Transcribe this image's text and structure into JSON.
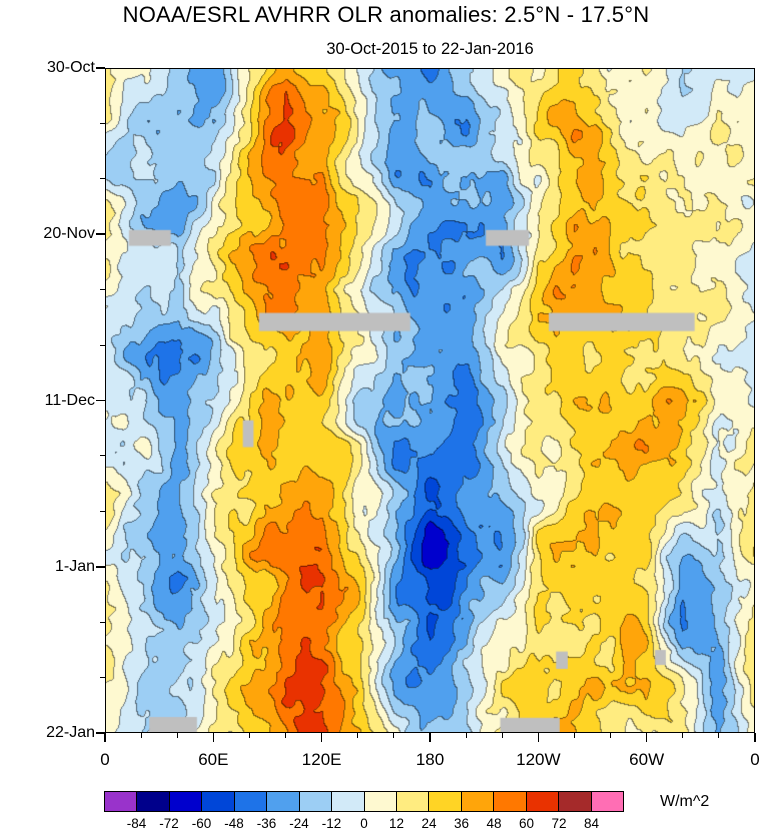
{
  "title": "NOAA/ESRL AVHRR OLR anomalies: 2.5°N - 17.5°N",
  "subtitle": "30-Oct-2015 to 22-Jan-2016",
  "chart_data": {
    "type": "heatmap",
    "description": "Time-longitude (Hovmoller) plot of OLR anomalies, filled contours every 12 W/m^2",
    "x_axis": {
      "tick_labels": [
        "0",
        "60E",
        "120E",
        "180",
        "120W",
        "60W",
        "0"
      ],
      "tick_degrees": [
        0,
        60,
        120,
        180,
        240,
        300,
        360
      ],
      "range_degrees": [
        0,
        360
      ],
      "minor_step_degrees": 20
    },
    "y_axis": {
      "tick_labels": [
        "30-Oct",
        "20-Nov",
        "11-Dec",
        "1-Jan",
        "22-Jan"
      ],
      "tick_days": [
        0,
        21,
        42,
        63,
        84
      ],
      "range_days": [
        0,
        84
      ],
      "minor_step_days": 7
    },
    "colorbar": {
      "label": "W/m^2",
      "boundaries": [
        -84,
        -72,
        -60,
        -48,
        -36,
        -24,
        -12,
        0,
        12,
        24,
        36,
        48,
        60,
        72,
        84
      ],
      "colors": [
        "#9933CB",
        "#00008B",
        "#0000CD",
        "#0046D8",
        "#1E73E8",
        "#50A0EE",
        "#9CCEF4",
        "#D2EAF8",
        "#FEF9D0",
        "#FFEC80",
        "#FFD425",
        "#FFA50A",
        "#FF7800",
        "#E93200",
        "#A52A2A",
        "#FF6EB4"
      ]
    },
    "grid": {
      "lon_step_degrees": 20,
      "day_step": 7,
      "values": [
        [
          8,
          -10,
          -20,
          -38,
          20,
          48,
          30,
          -5,
          -18,
          -32,
          -22,
          6,
          22,
          32,
          12,
          18,
          -22,
          -6,
          8
        ],
        [
          4,
          -14,
          -28,
          -30,
          18,
          55,
          42,
          8,
          -22,
          -15,
          -28,
          4,
          28,
          36,
          24,
          12,
          -10,
          16,
          4
        ],
        [
          0,
          -18,
          -24,
          -12,
          32,
          58,
          50,
          18,
          -26,
          -34,
          -22,
          -34,
          10,
          40,
          34,
          24,
          14,
          -10,
          0
        ],
        [
          10,
          -12,
          -20,
          6,
          30,
          46,
          54,
          28,
          -16,
          -40,
          -44,
          -28,
          18,
          44,
          40,
          30,
          20,
          10,
          10
        ],
        [
          6,
          -14,
          -16,
          10,
          38,
          54,
          46,
          -8,
          -30,
          -22,
          -26,
          -12,
          28,
          40,
          32,
          34,
          24,
          6,
          6
        ],
        [
          -4,
          -20,
          -30,
          -14,
          22,
          40,
          50,
          24,
          -20,
          -30,
          -16,
          4,
          24,
          30,
          34,
          26,
          28,
          14,
          -4
        ],
        [
          0,
          -16,
          -40,
          -22,
          24,
          36,
          32,
          -14,
          -34,
          -26,
          -40,
          -20,
          14,
          26,
          22,
          30,
          34,
          20,
          0
        ],
        [
          6,
          -10,
          -26,
          4,
          30,
          32,
          40,
          20,
          -26,
          -44,
          -30,
          -16,
          20,
          16,
          30,
          38,
          26,
          10,
          6
        ],
        [
          10,
          -14,
          -20,
          14,
          34,
          44,
          50,
          10,
          -30,
          -56,
          -44,
          -26,
          10,
          30,
          36,
          30,
          16,
          -18,
          10
        ],
        [
          6,
          -10,
          -24,
          10,
          40,
          50,
          56,
          24,
          -20,
          -62,
          -50,
          -20,
          24,
          36,
          26,
          22,
          -34,
          -16,
          6
        ],
        [
          10,
          -14,
          -30,
          -8,
          30,
          56,
          60,
          30,
          -16,
          -50,
          -34,
          10,
          30,
          26,
          30,
          26,
          -46,
          -10,
          10
        ],
        [
          14,
          -10,
          -20,
          6,
          34,
          60,
          56,
          20,
          -26,
          -32,
          -20,
          16,
          34,
          30,
          22,
          30,
          10,
          -26,
          14
        ],
        [
          10,
          -6,
          -16,
          10,
          30,
          52,
          60,
          34,
          -12,
          -26,
          -16,
          20,
          30,
          36,
          26,
          20,
          14,
          -30,
          10
        ]
      ]
    },
    "missing_data_color": "#BFBFBF",
    "missing_data_patches": [
      {
        "lon0": 12.7,
        "lon1": 36,
        "day0": 20.4,
        "day1": 22.4
      },
      {
        "lon0": 211,
        "lon1": 235,
        "day0": 20.4,
        "day1": 22.4
      },
      {
        "lon0": 85,
        "lon1": 169,
        "day0": 30.9,
        "day1": 33.2
      },
      {
        "lon0": 246,
        "lon1": 327,
        "day0": 30.9,
        "day1": 33.2
      },
      {
        "lon0": 76,
        "lon1": 82,
        "day0": 44.5,
        "day1": 47.9
      },
      {
        "lon0": 250,
        "lon1": 256.5,
        "day0": 73.8,
        "day1": 76
      },
      {
        "lon0": 305,
        "lon1": 311,
        "day0": 73.6,
        "day1": 75.5
      },
      {
        "lon0": 24,
        "lon1": 50.5,
        "day0": 82.1,
        "day1": 84
      },
      {
        "lon0": 219,
        "lon1": 252,
        "day0": 82.2,
        "day1": 84
      }
    ],
    "texture": {
      "seed": 11,
      "amplitude": 24,
      "octaves": [
        {
          "fx": 16,
          "fy": 14,
          "amp": 1
        },
        {
          "fx": 36,
          "fy": 30,
          "amp": 0.55
        },
        {
          "fx": 78,
          "fy": 64,
          "amp": 0.3
        }
      ]
    }
  }
}
